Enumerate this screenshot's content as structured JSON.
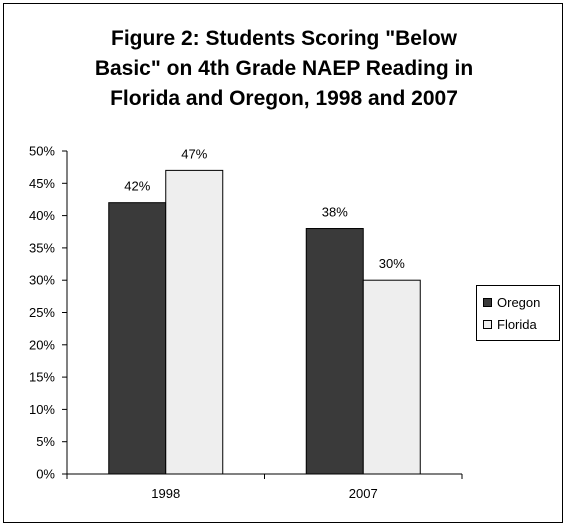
{
  "chart_data": {
    "type": "bar",
    "title_lines": [
      "Figure 2: Students Scoring \"Below",
      "Basic\" on 4th Grade NAEP Reading in",
      "Florida and Oregon, 1998 and 2007"
    ],
    "categories": [
      "1998",
      "2007"
    ],
    "series": [
      {
        "name": "Oregon",
        "values": [
          42,
          38
        ],
        "labels": [
          "42%",
          "38%"
        ],
        "color": "#3a3a3a"
      },
      {
        "name": "Florida",
        "values": [
          47,
          30
        ],
        "labels": [
          "47%",
          "30%"
        ],
        "color": "#eeeeee"
      }
    ],
    "ylim": [
      0,
      50
    ],
    "yticks": [
      "0%",
      "5%",
      "10%",
      "15%",
      "20%",
      "25%",
      "30%",
      "35%",
      "40%",
      "45%",
      "50%"
    ],
    "grid": false,
    "legend_position": "right"
  }
}
